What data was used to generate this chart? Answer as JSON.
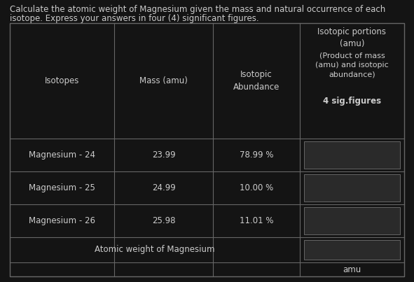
{
  "title_line1": "Calculate the atomic weight of Magnesium given the mass and natural occurrence of each",
  "title_line2": "isotope. Express your answers in four (4) significant figures.",
  "background_color": "#141414",
  "text_color": "#cccccc",
  "table_border_color": "#666666",
  "input_box_color": "#2a2a2a",
  "isotopes": [
    "Magnesium - 24",
    "Magnesium - 25",
    "Magnesium - 26"
  ],
  "masses": [
    "23.99",
    "24.99",
    "25.98"
  ],
  "abundances": [
    "78.99 %",
    "10.00 %",
    "11.01 %"
  ],
  "footer_label": "Atomic weight of Magnesium",
  "amu_label": "amu",
  "title_fontsize": 8.5,
  "cell_fontsize": 8.5,
  "header_fontsize": 8.5,
  "sig_fontsize": 8.5
}
